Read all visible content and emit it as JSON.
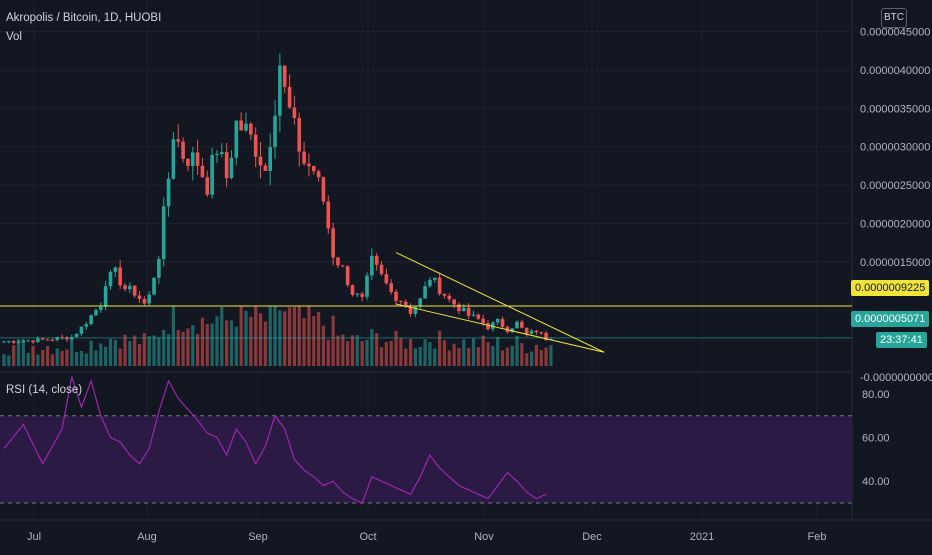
{
  "header": {
    "symbol": "Akropolis / Bitcoin, 1D, HUOBI",
    "volume_label": "Vol",
    "currency_badge": "BTC"
  },
  "price_axis": {
    "ticks": [
      "0.0000045000",
      "0.0000040000",
      "0.0000035000",
      "0.0000030000",
      "0.0000025000",
      "0.0000020000",
      "0.0000015000",
      "-0.0000000000"
    ],
    "tick_values": [
      4.5,
      4.0,
      3.5,
      3.0,
      2.5,
      2.0,
      1.5,
      0.0
    ],
    "hline_label": "0.0000009225",
    "hline_value": 0.9225,
    "last_price": "0.0000005071",
    "last_value": 0.5071,
    "countdown": "23:37:41",
    "colors": {
      "hline": "#f0e437",
      "last": "#26a69a",
      "up": "#26a69a",
      "down": "#ef5350"
    }
  },
  "rsi_panel": {
    "label": "RSI (14, close)",
    "ticks": [
      "80.00",
      "60.00",
      "40.00"
    ],
    "tick_values": [
      80,
      60,
      40
    ],
    "upper_band": 70,
    "lower_band": 30,
    "color": "#9c27b0",
    "band_color": "#2a1a44"
  },
  "time_axis": {
    "labels": [
      "Jul",
      "Aug",
      "Sep",
      "Oct",
      "Nov",
      "Dec",
      "2021",
      "Feb"
    ]
  },
  "chart_data": {
    "type": "candlestick",
    "price_unit_note": "values in 1e-6 BTC",
    "ohlc_anchors": [
      [
        0,
        0.46
      ],
      [
        8,
        0.48
      ],
      [
        14,
        0.52
      ],
      [
        16,
        0.64
      ],
      [
        20,
        0.95
      ],
      [
        21,
        1.25
      ],
      [
        23,
        1.35
      ],
      [
        25,
        1.15
      ],
      [
        27,
        1.1
      ],
      [
        29,
        0.95
      ],
      [
        30,
        1.05
      ],
      [
        32,
        1.6
      ],
      [
        34,
        2.6
      ],
      [
        35,
        3.2
      ],
      [
        37,
        2.9
      ],
      [
        40,
        2.8
      ],
      [
        42,
        2.5
      ],
      [
        44,
        3.0
      ],
      [
        46,
        2.6
      ],
      [
        48,
        3.3
      ],
      [
        50,
        3.2
      ],
      [
        52,
        3.0
      ],
      [
        54,
        2.7
      ],
      [
        56,
        3.6
      ],
      [
        57,
        4.1
      ],
      [
        58,
        3.7
      ],
      [
        60,
        3.2
      ],
      [
        62,
        2.8
      ],
      [
        64,
        2.7
      ],
      [
        66,
        2.3
      ],
      [
        68,
        1.6
      ],
      [
        70,
        1.4
      ],
      [
        72,
        1.1
      ],
      [
        74,
        1.0
      ],
      [
        76,
        1.5
      ],
      [
        78,
        1.3
      ],
      [
        80,
        1.1
      ],
      [
        82,
        1.0
      ],
      [
        84,
        0.85
      ],
      [
        86,
        1.0
      ],
      [
        88,
        1.3
      ],
      [
        90,
        1.15
      ],
      [
        92,
        1.0
      ],
      [
        94,
        0.9
      ],
      [
        96,
        0.8
      ],
      [
        98,
        0.75
      ],
      [
        100,
        0.65
      ],
      [
        102,
        0.72
      ],
      [
        104,
        0.62
      ],
      [
        106,
        0.7
      ],
      [
        108,
        0.55
      ],
      [
        110,
        0.6
      ],
      [
        112,
        0.5
      ],
      [
        113,
        0.52
      ]
    ],
    "volume": "relative bars below price panel",
    "annotations": [
      {
        "type": "horizontal_line",
        "value": 0.9225
      },
      {
        "type": "trendline",
        "from": [
          81,
          1.62
        ],
        "to": [
          124,
          0.32
        ]
      },
      {
        "type": "trendline",
        "from": [
          81,
          0.95
        ],
        "to": [
          124,
          0.32
        ]
      }
    ],
    "rsi": [
      [
        0,
        55
      ],
      [
        4,
        66
      ],
      [
        8,
        48
      ],
      [
        12,
        64
      ],
      [
        14,
        88
      ],
      [
        16,
        74
      ],
      [
        18,
        86
      ],
      [
        20,
        70
      ],
      [
        22,
        60
      ],
      [
        24,
        58
      ],
      [
        26,
        52
      ],
      [
        28,
        48
      ],
      [
        30,
        55
      ],
      [
        32,
        72
      ],
      [
        34,
        86
      ],
      [
        36,
        78
      ],
      [
        38,
        73
      ],
      [
        40,
        68
      ],
      [
        42,
        62
      ],
      [
        44,
        60
      ],
      [
        46,
        52
      ],
      [
        48,
        64
      ],
      [
        50,
        58
      ],
      [
        52,
        48
      ],
      [
        54,
        56
      ],
      [
        56,
        70
      ],
      [
        58,
        64
      ],
      [
        60,
        50
      ],
      [
        62,
        45
      ],
      [
        64,
        42
      ],
      [
        66,
        38
      ],
      [
        68,
        40
      ],
      [
        70,
        35
      ],
      [
        72,
        32
      ],
      [
        74,
        30
      ],
      [
        76,
        42
      ],
      [
        78,
        40
      ],
      [
        80,
        38
      ],
      [
        82,
        36
      ],
      [
        84,
        34
      ],
      [
        86,
        42
      ],
      [
        88,
        52
      ],
      [
        90,
        46
      ],
      [
        92,
        42
      ],
      [
        94,
        38
      ],
      [
        96,
        36
      ],
      [
        98,
        34
      ],
      [
        100,
        32
      ],
      [
        102,
        38
      ],
      [
        104,
        44
      ],
      [
        106,
        40
      ],
      [
        108,
        35
      ],
      [
        110,
        32
      ],
      [
        112,
        34
      ]
    ]
  }
}
